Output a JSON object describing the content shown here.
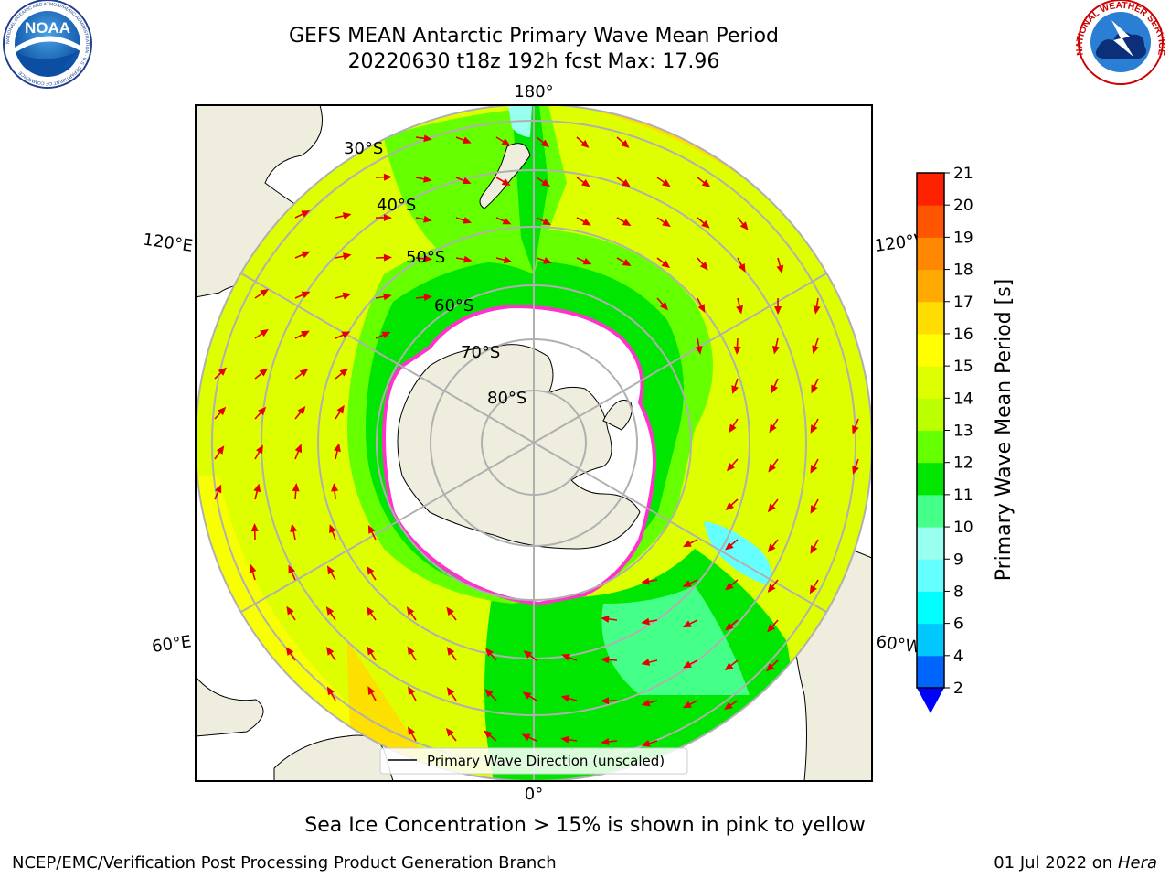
{
  "header": {
    "title_line1": "GEFS MEAN Antarctic Primary Wave Mean Period",
    "title_line2": "20220630 t18z 192h fcst   Max: 17.96"
  },
  "logos": {
    "noaa_text": "NOAA",
    "noaa_ring_text": "NATIONAL OCEANIC AND ATMOSPHERIC ADMINISTRATION · U.S. DEPARTMENT OF COMMERCE",
    "nws_ring_text": "NATIONAL WEATHER SERVICE"
  },
  "map": {
    "projection": "south-polar-stereographic",
    "longitude_labels": {
      "top": "180°",
      "bottom": "0°",
      "upper_left": "120°E",
      "lower_left": "60°E",
      "upper_right": "120°W",
      "lower_right": "60°W"
    },
    "latitude_labels": [
      "30°S",
      "40°S",
      "50°S",
      "60°S",
      "70°S",
      "80°S"
    ],
    "legend_label": "Primary Wave Direction (unscaled)",
    "arrow_color": "#e60000",
    "land_color": "#efedde",
    "ice_edge_color": "#ff33cc"
  },
  "colorbar": {
    "label": "Primary Wave Mean Period [s]",
    "ticks": [
      "2",
      "4",
      "6",
      "8",
      "9",
      "10",
      "11",
      "12",
      "13",
      "14",
      "15",
      "16",
      "17",
      "18",
      "19",
      "20",
      "21"
    ],
    "colors": [
      "#0064ff",
      "#00c8ff",
      "#00ffff",
      "#66ffff",
      "#99ffee",
      "#44ff88",
      "#00e600",
      "#66ff00",
      "#bbff00",
      "#ddff00",
      "#ffff00",
      "#ffdd00",
      "#ffaa00",
      "#ff8800",
      "#ff5500",
      "#ff2200"
    ],
    "extend_color": "#0000ff"
  },
  "caption": "Sea Ice Concentration > 15% is shown in pink to yellow",
  "footer": {
    "left": "NCEP/EMC/Verification Post Processing Product Generation Branch",
    "date": "01 Jul 2022 on",
    "host": "Hera"
  }
}
